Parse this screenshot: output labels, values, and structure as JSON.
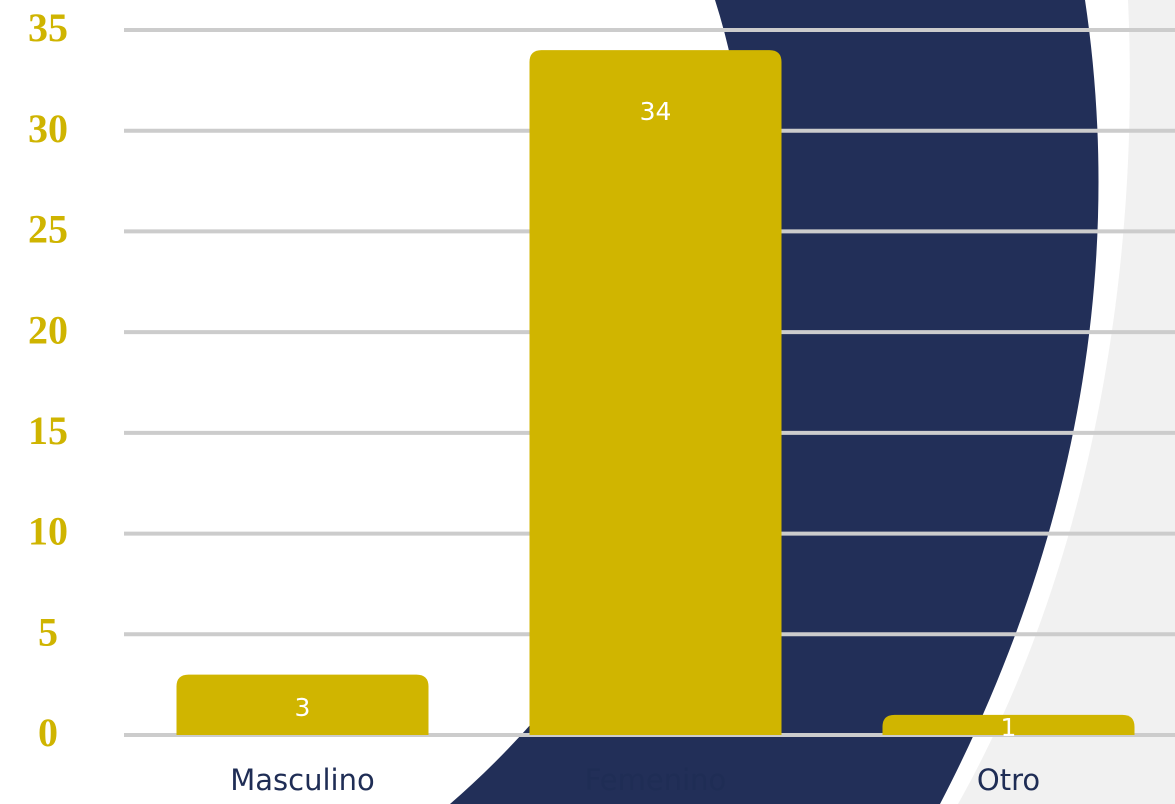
{
  "chart_data": {
    "type": "bar",
    "categories": [
      "Masculino",
      "Femenino",
      "Otro"
    ],
    "values": [
      3,
      34,
      1
    ],
    "color": "#d0b500",
    "ylim": [
      0,
      35
    ],
    "yticks": [
      0,
      5,
      10,
      15,
      20,
      25,
      30,
      35
    ],
    "grid": true
  }
}
